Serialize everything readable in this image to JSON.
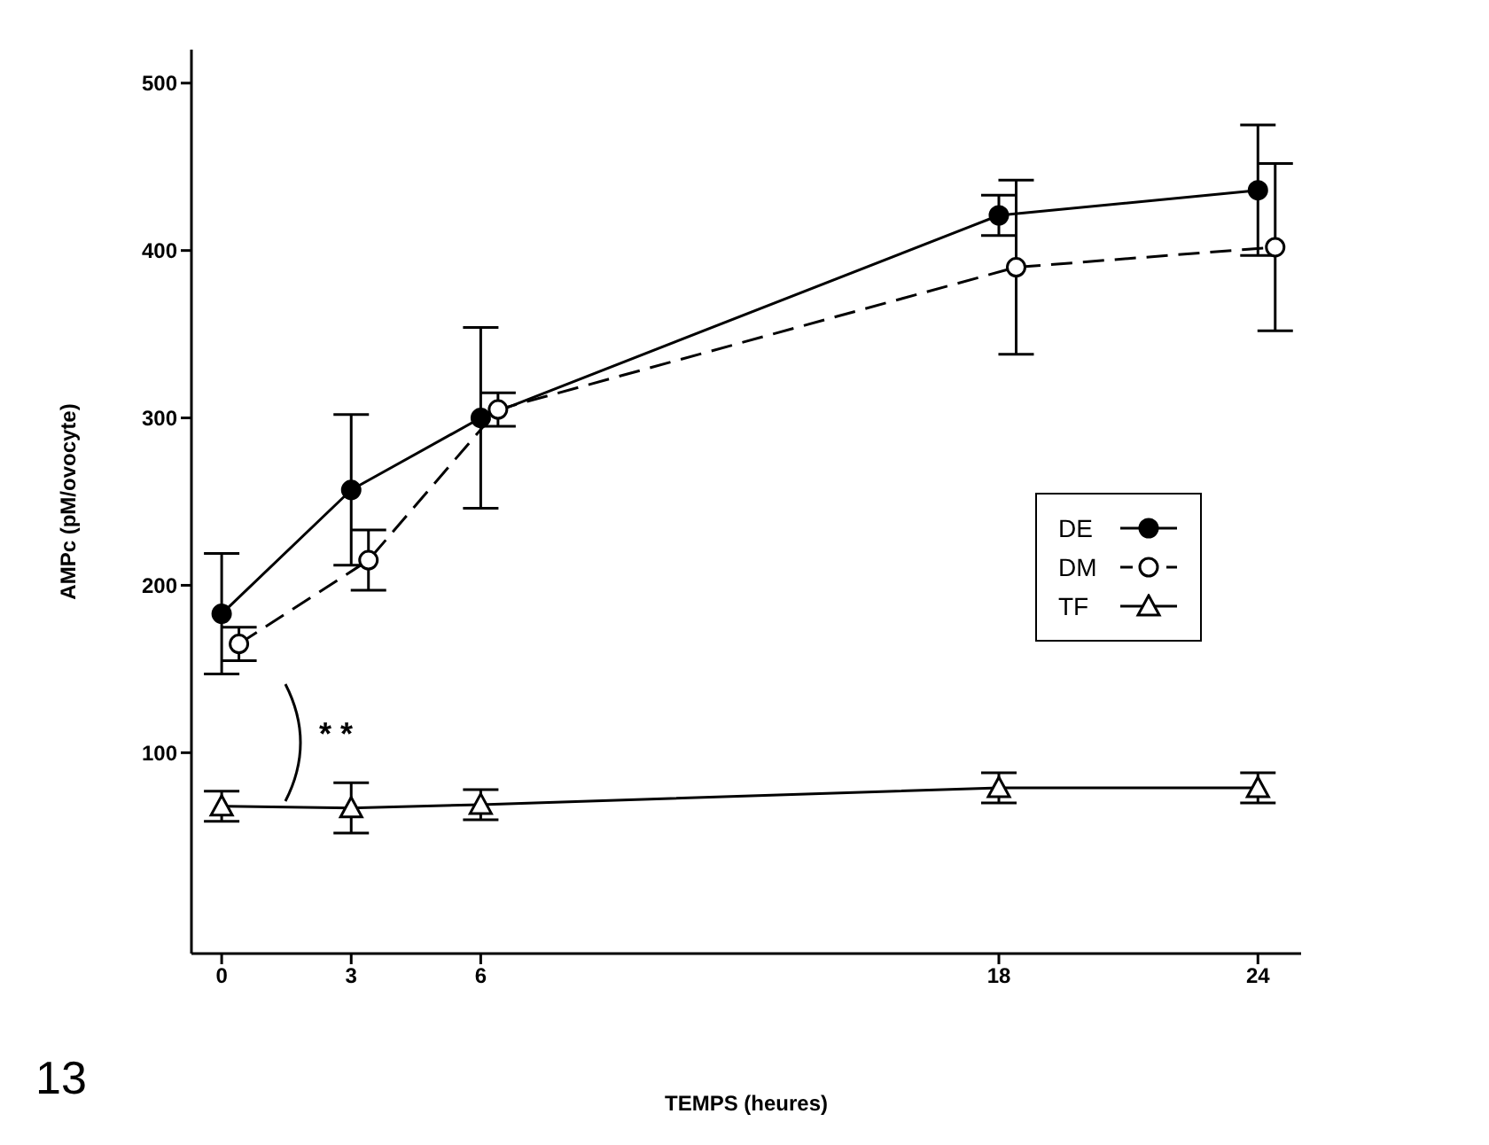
{
  "chart_data": {
    "type": "line",
    "xlabel": "TEMPS (heures)",
    "ylabel": "AMPc (pM/ovocyte)",
    "xlim": [
      -0.7,
      25
    ],
    "xticks": [
      0,
      3,
      6,
      18,
      24
    ],
    "ylim": [
      -20,
      520
    ],
    "yticks": [
      100,
      200,
      300,
      400,
      500
    ],
    "legend": "right",
    "annotations": [
      "* *",
      "13"
    ],
    "series": [
      {
        "name": "DE",
        "color": "#000000",
        "marker": "circle",
        "line_style": "solid",
        "x": [
          0,
          3,
          6,
          18,
          24
        ],
        "values": [
          183,
          257,
          300,
          421,
          436
        ],
        "errors": [
          36,
          45,
          54,
          12,
          39
        ]
      },
      {
        "name": "DM",
        "color": "#000000",
        "marker": "circle",
        "line_style": "dashed",
        "x": [
          0.4,
          3.4,
          6.4,
          18.4,
          24.4
        ],
        "values": [
          165,
          215,
          305,
          390,
          402
        ],
        "errors": [
          10,
          18,
          10,
          52,
          50
        ]
      },
      {
        "name": "TF",
        "color": "#000000",
        "marker": "triangle",
        "line_style": "solid",
        "x": [
          0,
          3,
          6,
          18,
          24
        ],
        "values": [
          68,
          67,
          69,
          79,
          79
        ],
        "errors": [
          9,
          15,
          9,
          9,
          9
        ]
      }
    ]
  }
}
